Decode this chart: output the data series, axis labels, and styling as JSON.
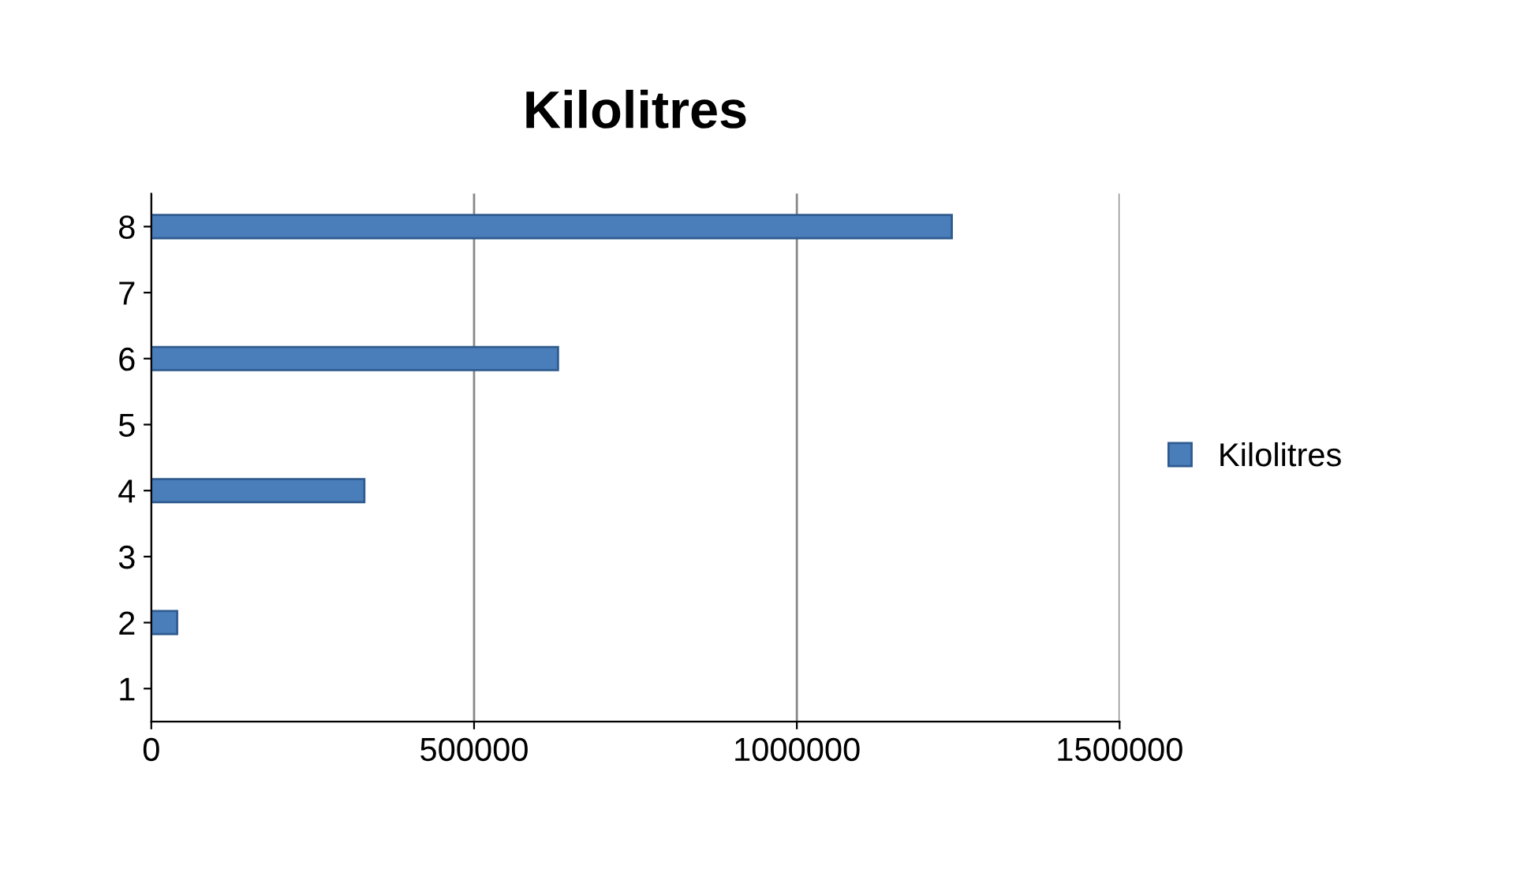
{
  "chart_data": {
    "type": "bar",
    "orientation": "horizontal",
    "title": "Kilolitres",
    "categories": [
      "8",
      "7",
      "6",
      "5",
      "4",
      "3",
      "2",
      "1"
    ],
    "series": [
      {
        "name": "Kilolitres",
        "color": "#4a7ebb",
        "values": [
          1240000,
          null,
          630000,
          null,
          330000,
          null,
          40000,
          null
        ]
      }
    ],
    "xlim": [
      0,
      1500000
    ],
    "xticks": [
      0,
      500000,
      1000000,
      1500000
    ],
    "grid": "x",
    "legend": "right"
  }
}
